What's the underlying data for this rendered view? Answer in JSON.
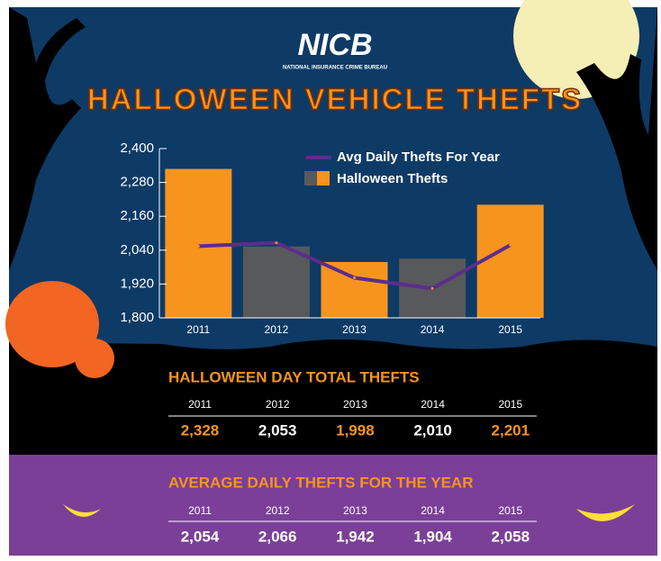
{
  "header": {
    "logo": "NICB",
    "org": "NATIONAL INSURANCE CRIME BUREAU",
    "title": "HALLOWEEN VEHICLE THEFTS"
  },
  "chart_data": {
    "type": "bar_line",
    "categories": [
      "2011",
      "2012",
      "2013",
      "2014",
      "2015"
    ],
    "series": [
      {
        "name": "Halloween Thefts",
        "type": "bar",
        "colors": [
          "#f7941d",
          "#58595b",
          "#f7941d",
          "#58595b",
          "#f7941d"
        ],
        "values": [
          2328,
          2053,
          1998,
          2010,
          2201
        ],
        "value_labels": [
          "2,328",
          "2,053",
          "1,998",
          "2,010",
          "2,201"
        ]
      },
      {
        "name": "Avg Daily Thefts For Year",
        "type": "line",
        "color": "#5b2d8e",
        "values": [
          2054,
          2066,
          1942,
          1904,
          2058
        ],
        "value_labels": [
          "2,054",
          "2,066",
          "1,942",
          "1,904",
          "2,058"
        ]
      }
    ],
    "ylim": [
      1800,
      2400
    ],
    "yticks": [
      {
        "value": 1800,
        "label": "1,800"
      },
      {
        "value": 1920,
        "label": "1,920"
      },
      {
        "value": 2040,
        "label": "2,040"
      },
      {
        "value": 2160,
        "label": "2,160"
      },
      {
        "value": 2280,
        "label": "2,280"
      },
      {
        "value": 2400,
        "label": "2,400"
      }
    ]
  },
  "tables": [
    {
      "title": "HALLOWEEN DAY TOTAL THEFTS"
    },
    {
      "title": "AVERAGE DAILY THEFTS FOR THE YEAR"
    }
  ]
}
